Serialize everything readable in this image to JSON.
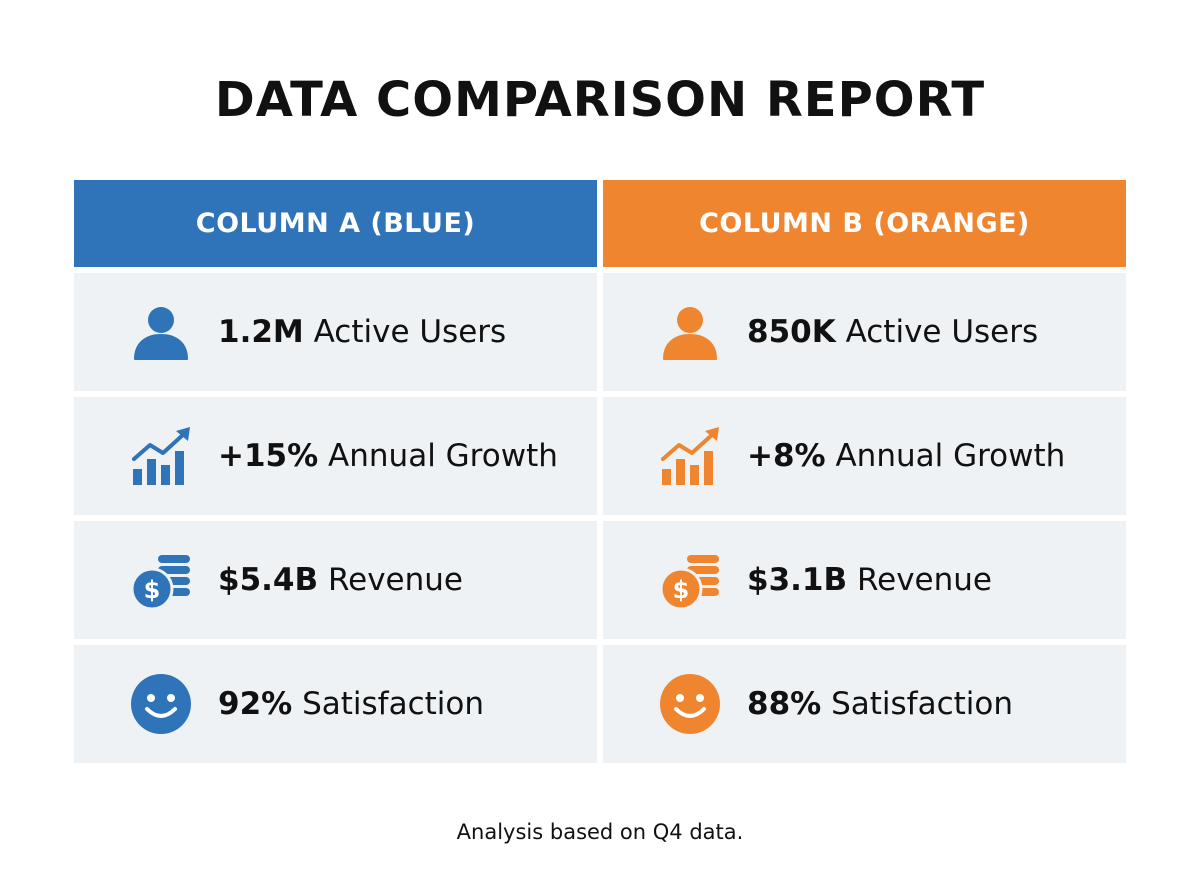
{
  "title": "DATA COMPARISON REPORT",
  "colors": {
    "blue": "#2f73b8",
    "orange": "#f08530",
    "cell_bg": "#eef2f5"
  },
  "columns": [
    {
      "header": "COLUMN A (BLUE)",
      "rows": [
        {
          "icon": "user-icon",
          "value": "1.2M",
          "label": "Active Users"
        },
        {
          "icon": "growth-chart-icon",
          "value": "+15%",
          "label": "Annual Growth"
        },
        {
          "icon": "revenue-coins-icon",
          "value": "$5.4B",
          "label": "Revenue"
        },
        {
          "icon": "smiley-face-icon",
          "value": "92%",
          "label": "Satisfaction"
        }
      ]
    },
    {
      "header": "COLUMN B (ORANGE)",
      "rows": [
        {
          "icon": "user-icon",
          "value": "850K",
          "label": "Active Users"
        },
        {
          "icon": "growth-chart-icon",
          "value": "+8%",
          "label": "Annual Growth"
        },
        {
          "icon": "revenue-coins-icon",
          "value": "$3.1B",
          "label": "Revenue"
        },
        {
          "icon": "smiley-face-icon",
          "value": "88%",
          "label": "Satisfaction"
        }
      ]
    }
  ],
  "footer": "Analysis based on Q4 data."
}
